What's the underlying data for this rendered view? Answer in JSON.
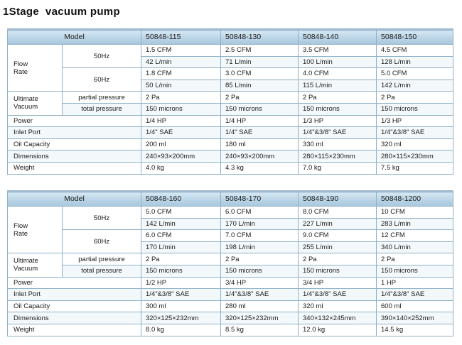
{
  "page": {
    "title": "1Stage  vacuum pump"
  },
  "labels": {
    "model": "Model",
    "flow_rate_line1": "Flow",
    "flow_rate_line2": "Rate",
    "hz50": "50Hz",
    "hz60": "60Hz",
    "ultimate_line1": "Ultimate",
    "ultimate_line2": "Vacuum",
    "partial_pressure": "partial pressure",
    "total_pressure": "total pressure",
    "power": "Power",
    "inlet_port": "Inlet Port",
    "oil_capacity": "Oil Capacity",
    "dimensions": "Dimensions",
    "weight": "Weight"
  },
  "tables": [
    {
      "models": [
        "50848-115",
        "50848-130",
        "50848-140",
        "50848-150"
      ],
      "flow_50_cfm": [
        "1.5 CFM",
        "2.5 CFM",
        "3.5 CFM",
        "4.5 CFM"
      ],
      "flow_50_lmin": [
        "42 L/min",
        "71 L/min",
        "100 L/min",
        "128 L/min"
      ],
      "flow_60_cfm": [
        "1.8 CFM",
        "3.0 CFM",
        "4.0 CFM",
        "5.0 CFM"
      ],
      "flow_60_lmin": [
        "50 L/min",
        "85 L/min",
        "115 L/min",
        "142 L/min"
      ],
      "partial_pressure": [
        "2 Pa",
        "2 Pa",
        "2 Pa",
        "2 Pa"
      ],
      "total_pressure": [
        "150 microns",
        "150 microns",
        "150 microns",
        "150 microns"
      ],
      "power": [
        "1/4 HP",
        "1/4 HP",
        "1/3 HP",
        "1/3 HP"
      ],
      "inlet_port": [
        "1/4\" SAE",
        "1/4\" SAE",
        "1/4\"&3/8\" SAE",
        "1/4\"&3/8\" SAE"
      ],
      "oil_capacity": [
        "200 ml",
        "180 ml",
        "330 ml",
        "320 ml"
      ],
      "dimensions": [
        "240×93×200mm",
        "240×93×200mm",
        "280×115×230mm",
        "280×115×230mm"
      ],
      "weight": [
        "4.0 kg",
        "4.3 kg",
        "7.0 kg",
        "7.5 kg"
      ]
    },
    {
      "models": [
        "50848-160",
        "50848-170",
        "50848-190",
        "50848-1200"
      ],
      "flow_50_cfm": [
        "5.0 CFM",
        "6.0 CFM",
        "8.0 CFM",
        "10 CFM"
      ],
      "flow_50_lmin": [
        "142 L/min",
        "170 L/min",
        "227 L/min",
        "283 L/min"
      ],
      "flow_60_cfm": [
        "6.0 CFM",
        "7.0  CFM",
        "9.0 CFM",
        "12 CFM"
      ],
      "flow_60_lmin": [
        "170 L/min",
        "198 L/min",
        "255 L/min",
        "340 L/min"
      ],
      "partial_pressure": [
        "2 Pa",
        "2 Pa",
        "2 Pa",
        "2 Pa"
      ],
      "total_pressure": [
        "150 microns",
        "150 microns",
        "150 microns",
        "150 microns"
      ],
      "power": [
        "1/2 HP",
        "3/4 HP",
        "3/4 HP",
        "1 HP"
      ],
      "inlet_port": [
        "1/4\"&3/8\" SAE",
        "1/4\"&3/8\" SAE",
        "1/4\"&3/8\" SAE",
        "1/4\"&3/8\" SAE"
      ],
      "oil_capacity": [
        "300 ml",
        "280 ml",
        "320 ml",
        "600 ml"
      ],
      "dimensions": [
        "320×125×232mm",
        "320×125×232mm",
        "340×132×245mm",
        "390×140×252mm"
      ],
      "weight": [
        "8.0 kg",
        "8.5 kg",
        "12.0 kg",
        "14.5 kg"
      ]
    }
  ]
}
